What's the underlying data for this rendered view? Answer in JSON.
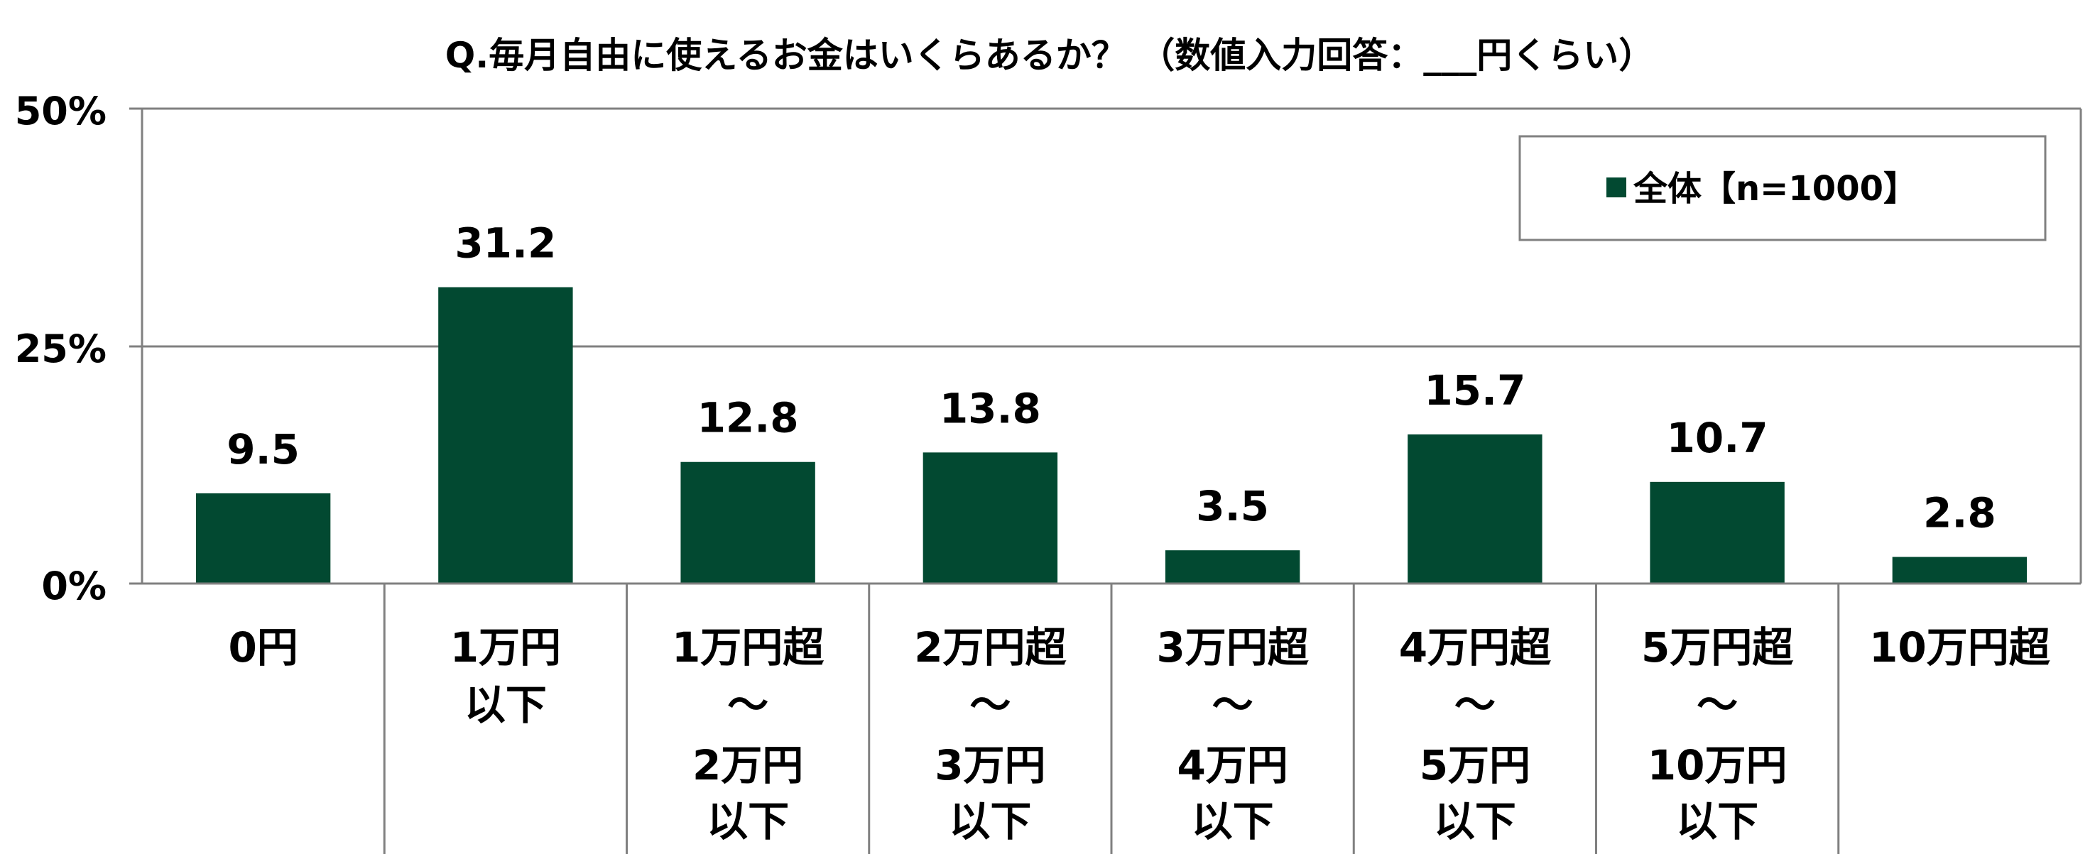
{
  "chart_data": {
    "type": "bar",
    "title": "Q.毎月自由に使えるお金はいくらあるか？ （数値入力回答：___円くらい）",
    "yticks": [
      "50%",
      "25%",
      "0%"
    ],
    "ylim": [
      0,
      50
    ],
    "grid": true,
    "legend_position": "top-right",
    "series": [
      {
        "name": "全体【n=1000】",
        "color": "#024931",
        "values": [
          9.5,
          31.2,
          12.8,
          13.8,
          3.5,
          15.7,
          10.7,
          2.8
        ]
      }
    ],
    "value_labels": [
      "9.5",
      "31.2",
      "12.8",
      "13.8",
      "3.5",
      "15.7",
      "10.7",
      "2.8"
    ],
    "categories": [
      [
        "0円"
      ],
      [
        "1万円",
        "以下"
      ],
      [
        "1万円超",
        "～",
        "2万円",
        "以下"
      ],
      [
        "2万円超",
        "～",
        "3万円",
        "以下"
      ],
      [
        "3万円超",
        "～",
        "4万円",
        "以下"
      ],
      [
        "4万円超",
        "～",
        "5万円",
        "以下"
      ],
      [
        "5万円超",
        "～",
        "10万円",
        "以下"
      ],
      [
        "10万円超"
      ]
    ]
  }
}
